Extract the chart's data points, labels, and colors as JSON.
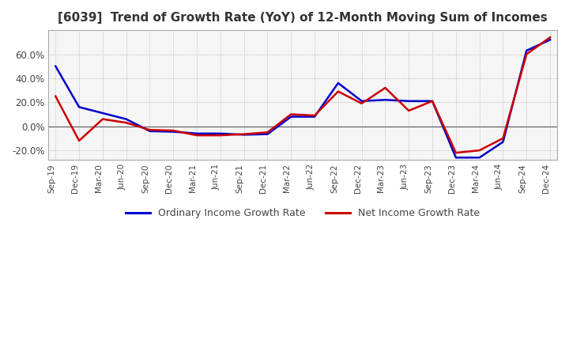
{
  "title": "[6039]  Trend of Growth Rate (YoY) of 12-Month Moving Sum of Incomes",
  "title_fontsize": 11,
  "legend_labels": [
    "Ordinary Income Growth Rate",
    "Net Income Growth Rate"
  ],
  "legend_colors": [
    "#0000cc",
    "#cc0000"
  ],
  "ylim": [
    -28,
    80
  ],
  "yticks": [
    -20.0,
    0.0,
    20.0,
    40.0,
    60.0
  ],
  "grid_color": "#aaaaaa",
  "background_color": "#ffffff",
  "plot_bg_color": "#f5f5f5",
  "dates": [
    "Sep-19",
    "Dec-19",
    "Mar-20",
    "Jun-20",
    "Sep-20",
    "Dec-20",
    "Mar-21",
    "Jun-21",
    "Sep-21",
    "Dec-21",
    "Mar-22",
    "Jun-22",
    "Sep-22",
    "Dec-22",
    "Mar-23",
    "Jun-23",
    "Sep-23",
    "Dec-23",
    "Mar-24",
    "Jun-24",
    "Sep-24",
    "Dec-24"
  ],
  "ordinary_income_gr": [
    50.0,
    16.0,
    11.0,
    6.0,
    -4.0,
    -4.5,
    -6.0,
    -6.0,
    -7.0,
    -6.5,
    8.0,
    8.0,
    36.0,
    21.0,
    22.0,
    21.0,
    21.0,
    -26.0,
    -26.0,
    -13.0,
    63.0,
    72.0
  ],
  "net_income_gr": [
    25.0,
    -12.0,
    6.0,
    3.0,
    -3.0,
    -3.5,
    -7.5,
    -7.5,
    -6.5,
    -5.0,
    10.0,
    9.0,
    29.0,
    19.0,
    32.0,
    13.0,
    21.0,
    -22.0,
    -20.0,
    -10.0,
    60.0,
    74.0
  ]
}
